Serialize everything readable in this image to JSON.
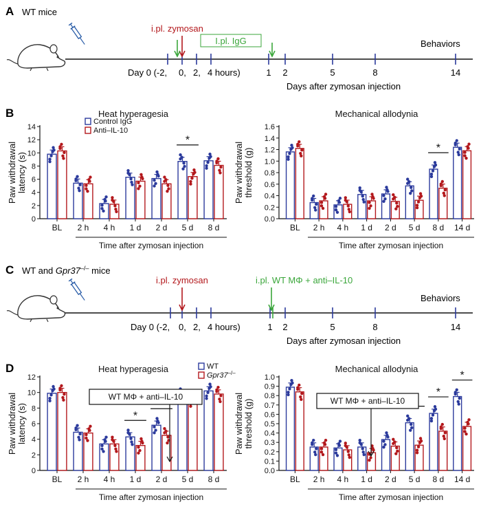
{
  "colors": {
    "blue": "#2b3a9c",
    "red": "#b3181c",
    "green": "#3aa63a",
    "black": "#111111",
    "grey": "#888888"
  },
  "panel_a": {
    "letter": "A",
    "title": "WT mice",
    "event1": "i.pl. zymosan",
    "event2": "I.pl. IgG",
    "end_label": "Behaviors",
    "day_labels": [
      "Day 0 (-2,",
      "0,",
      "2,",
      "4 hours)",
      "1",
      "2",
      "5",
      "8",
      "14"
    ],
    "axis_caption": "Days after zymosan injection"
  },
  "panel_c": {
    "letter": "C",
    "title_prefix": "WT and ",
    "title_gene": "Gpr37",
    "title_sup": "–/–",
    "title_suffix": " mice",
    "event1": "i.pl. zymosan",
    "event2": "i.pl. WT MΦ + anti–IL-10",
    "end_label": "Behaviors",
    "day_labels": [
      "Day 0 (-2,",
      "0,",
      "2,",
      "4 hours)",
      "1",
      "2",
      "5",
      "8",
      "14"
    ],
    "axis_caption": "Days after zymosan injection"
  },
  "labels": {
    "letter_b": "B",
    "letter_d": "D",
    "xcaption": "Time after zymosan injection"
  },
  "chart_data": [
    {
      "id": "B_heat",
      "type": "bar",
      "title": "Heat hyperagesia",
      "ylabel": "Paw withdrawal latency (s)",
      "categories": [
        "BL",
        "2 h",
        "4 h",
        "1 d",
        "2 d",
        "5 d",
        "8 d"
      ],
      "ylim": [
        0,
        14
      ],
      "yticks": [
        0,
        2,
        4,
        6,
        8,
        10,
        12,
        14
      ],
      "series": [
        {
          "name": "Control IgG",
          "values": [
            9.8,
            5.4,
            2.3,
            6.3,
            6.1,
            8.7,
            8.8
          ]
        },
        {
          "name": "Anti–IL-10",
          "values": [
            10.3,
            5.3,
            2.2,
            5.7,
            5.3,
            6.4,
            8.1
          ]
        }
      ],
      "significance": [
        {
          "category": "5 d",
          "label": "*"
        }
      ],
      "legend": "top"
    },
    {
      "id": "B_mech",
      "type": "bar",
      "title": "Mechanical allodynia",
      "ylabel": "Paw withdrawal threshold (g)",
      "categories": [
        "BL",
        "2 h",
        "4 h",
        "1 d",
        "2 d",
        "5 d",
        "8 d",
        "14 d"
      ],
      "ylim": [
        0,
        1.6
      ],
      "yticks": [
        0,
        0.2,
        0.4,
        0.6,
        0.8,
        1.0,
        1.2,
        1.4,
        1.6
      ],
      "series": [
        {
          "name": "Control IgG",
          "values": [
            1.16,
            0.28,
            0.24,
            0.42,
            0.43,
            0.57,
            0.86,
            1.24
          ]
        },
        {
          "name": "Anti–IL-10",
          "values": [
            1.22,
            0.31,
            0.25,
            0.31,
            0.3,
            0.32,
            0.53,
            1.18
          ]
        }
      ],
      "significance": [
        {
          "category": "8 d",
          "label": "*"
        }
      ]
    },
    {
      "id": "D_heat",
      "type": "bar",
      "title": "Heat hyperagesia",
      "ylabel": "Paw withdrawal latency (s)",
      "categories": [
        "BL",
        "2 h",
        "4 h",
        "1 d",
        "2 d",
        "5 d",
        "8 d"
      ],
      "ylim": [
        0,
        12
      ],
      "yticks": [
        0,
        2,
        4,
        6,
        8,
        10,
        12
      ],
      "series": [
        {
          "name": "WT",
          "values": [
            9.9,
            4.9,
            3.4,
            4.3,
            5.8,
            9.6,
            10.2
          ]
        },
        {
          "name": "Gpr37–/–",
          "values": [
            10.0,
            4.8,
            3.4,
            3.2,
            4.5,
            9.2,
            9.8
          ]
        }
      ],
      "significance": [
        {
          "category": "1 d",
          "label": "*"
        },
        {
          "category": "2 d",
          "label": "*"
        }
      ],
      "annotation": "WT MΦ + anti–IL-10",
      "legend": "top-right"
    },
    {
      "id": "D_mech",
      "type": "bar",
      "title": "Mechanical allodynia",
      "ylabel": "Paw withdrawal threshold (g)",
      "categories": [
        "BL",
        "2 h",
        "4 h",
        "1 d",
        "2 d",
        "5 d",
        "8 d",
        "14 d"
      ],
      "ylim": [
        0,
        1.0
      ],
      "yticks": [
        0,
        0.1,
        0.2,
        0.3,
        0.4,
        0.5,
        0.6,
        0.7,
        0.8,
        0.9,
        1.0
      ],
      "series": [
        {
          "name": "WT",
          "values": [
            0.89,
            0.25,
            0.24,
            0.25,
            0.33,
            0.51,
            0.61,
            0.79
          ]
        },
        {
          "name": "Gpr37–/–",
          "values": [
            0.84,
            0.25,
            0.22,
            0.19,
            0.26,
            0.27,
            0.42,
            0.47
          ]
        }
      ],
      "significance": [
        {
          "category": "5 d",
          "label": "*"
        },
        {
          "category": "8 d",
          "label": "*"
        },
        {
          "category": "14 d",
          "label": "*"
        }
      ],
      "annotation": "WT MΦ + anti–IL-10"
    }
  ]
}
